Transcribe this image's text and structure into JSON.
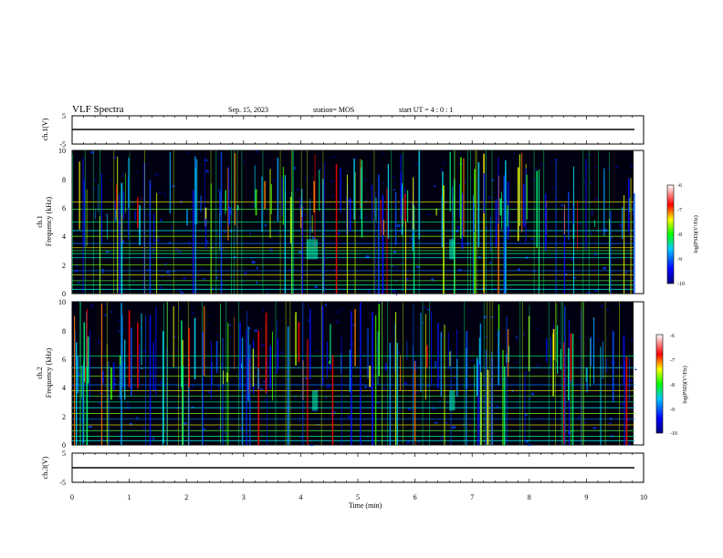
{
  "header": {
    "title": "VLF Spectra",
    "date": "Sep. 15, 2023",
    "station": "station= MOS",
    "start_ut": "start  UT =   4 : 0  : 1"
  },
  "colors": {
    "background": "#000000",
    "trace": "#000000",
    "axis": "#000000"
  },
  "chart_data": {
    "type": "heatmap",
    "x": {
      "label": "Time  (min)",
      "range": [
        0,
        10
      ],
      "ticks": [
        "0",
        "1",
        "2",
        "3",
        "4",
        "5",
        "6",
        "7",
        "8",
        "9",
        "10"
      ]
    },
    "panels": [
      {
        "id": "ch1-waveform",
        "label": "ch.1(V)",
        "kind": "line",
        "ylim": [
          -5,
          5
        ],
        "yticks": [
          "5",
          "-5"
        ],
        "level": 0
      },
      {
        "id": "ch1-spectrogram",
        "label": "ch.1",
        "ylabel": "Frequency (kHz)",
        "kind": "heatmap",
        "ylim": [
          0,
          10
        ],
        "yticks": [
          "0",
          "2",
          "4",
          "6",
          "8",
          "10"
        ],
        "steady_lines_khz": [
          0.3,
          0.6,
          0.9,
          1.3,
          1.6,
          2.0,
          2.5,
          2.8,
          3.0,
          3.2,
          3.5,
          4.0,
          4.4,
          5.0,
          5.9,
          6.4
        ],
        "bursts_min": [
          4.1,
          4.3,
          6.6,
          6.7
        ],
        "colorbar": {
          "label": "log(PSD)(V²/Hz)",
          "range": [
            -10,
            -6
          ],
          "ticks": [
            "-6",
            "-7",
            "-8",
            "-9",
            "-10"
          ]
        }
      },
      {
        "id": "ch2-spectrogram",
        "label": "ch.2",
        "ylabel": "Frequency (kHz)",
        "kind": "heatmap",
        "ylim": [
          0,
          10
        ],
        "yticks": [
          "0",
          "2",
          "4",
          "6",
          "8",
          "10"
        ],
        "steady_lines_khz": [
          0.3,
          0.6,
          1.0,
          1.4,
          1.8,
          2.2,
          2.6,
          3.0,
          3.4,
          3.8,
          4.2,
          4.8,
          5.4,
          6.2
        ],
        "bursts_min": [
          4.2,
          4.3,
          6.6,
          6.7
        ],
        "colorbar": {
          "label": "log(PSD)(V²/Hz)",
          "range": [
            -10,
            -6
          ],
          "ticks": [
            "-6",
            "-7",
            "-8",
            "-9",
            "-10"
          ]
        }
      },
      {
        "id": "ch3-waveform",
        "label": "ch.3(V)",
        "kind": "line",
        "ylim": [
          -5,
          5
        ],
        "yticks": [
          "5",
          "-5"
        ],
        "level": 0
      }
    ],
    "data_end_min": 9.85
  }
}
